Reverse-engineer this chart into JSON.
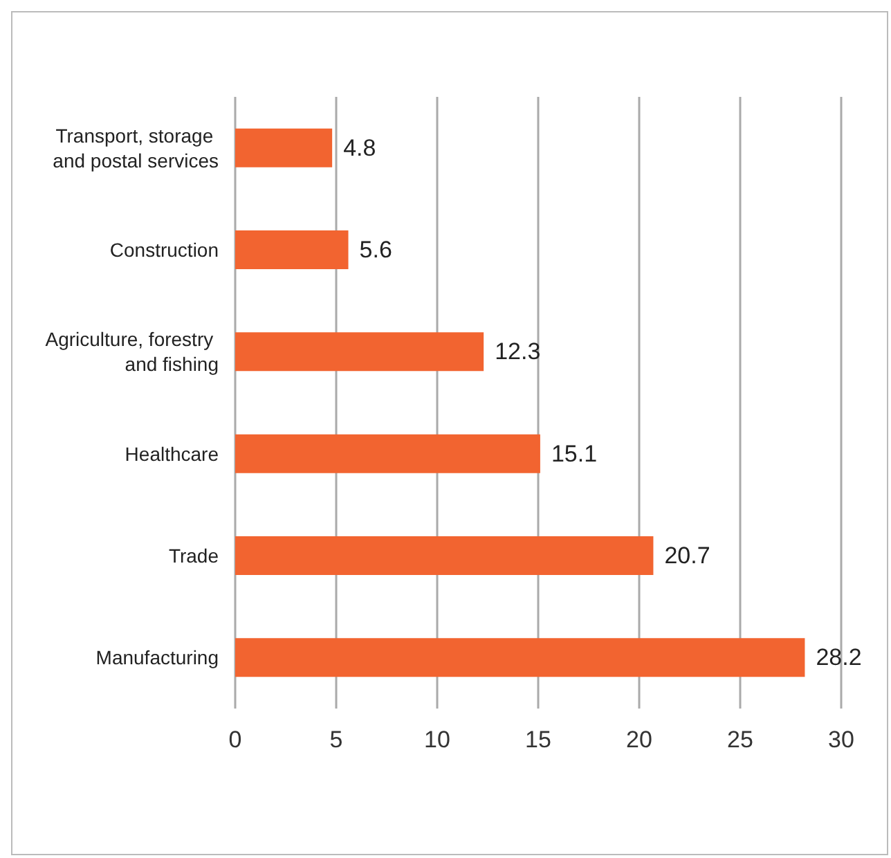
{
  "chart_data": {
    "type": "bar",
    "orientation": "horizontal",
    "categories": [
      "Transport, storage and postal services",
      "Construction",
      "Agriculture, forestry and fishing",
      "Healthcare",
      "Trade",
      "Manufacturing"
    ],
    "values": [
      4.8,
      5.6,
      12.3,
      15.1,
      20.7,
      28.2
    ],
    "color": "#f26430",
    "xlim": [
      0,
      30
    ],
    "xticks": [
      0,
      5,
      10,
      15,
      20,
      25,
      30
    ],
    "grid": "x",
    "data_labels": true
  }
}
